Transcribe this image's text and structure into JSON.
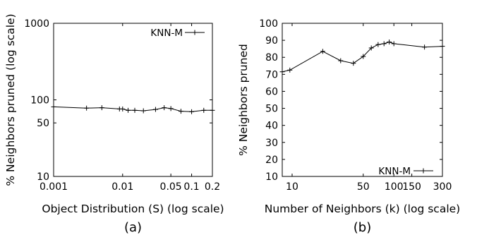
{
  "chart_data": [
    {
      "type": "line",
      "panel_label": "(a)",
      "xlabel": "Object Distribution (S) (log scale)",
      "ylabel": "% Neighbors pruned (log scale)",
      "x_scale": "log",
      "y_scale": "log",
      "xlim": [
        0.001,
        0.2
      ],
      "ylim": [
        10,
        1000
      ],
      "x_ticks": [
        {
          "value": 0.001,
          "label": "0.001"
        },
        {
          "value": 0.01,
          "label": "0.01"
        },
        {
          "value": 0.05,
          "label": "0.05"
        },
        {
          "value": 0.1,
          "label": "0.1"
        },
        {
          "value": 0.2,
          "label": "0.2"
        }
      ],
      "y_ticks": [
        {
          "value": 10,
          "label": "10"
        },
        {
          "value": 50,
          "label": "50"
        },
        {
          "value": 100,
          "label": "100"
        },
        {
          "value": 1000,
          "label": "1000"
        }
      ],
      "legend_position": "top-right",
      "grid": false,
      "series": [
        {
          "name": "KNN-M",
          "x": [
            0.001,
            0.003,
            0.005,
            0.009,
            0.01,
            0.012,
            0.015,
            0.02,
            0.03,
            0.04,
            0.05,
            0.07,
            0.1,
            0.15,
            0.2
          ],
          "y": [
            81,
            78,
            79,
            76,
            76,
            73,
            73,
            72,
            75,
            79,
            77,
            71,
            70,
            73,
            73
          ]
        }
      ]
    },
    {
      "type": "line",
      "panel_label": "(b)",
      "xlabel": "Number of Neighbors (k) (log scale)",
      "ylabel": "% Neighbors pruned",
      "x_scale": "log",
      "y_scale": "linear",
      "xlim": [
        8,
        300
      ],
      "ylim": [
        10,
        100
      ],
      "x_ticks": [
        {
          "value": 10,
          "label": "10"
        },
        {
          "value": 50,
          "label": "50"
        },
        {
          "value": 100,
          "label": "100"
        },
        {
          "value": 150,
          "label": "150"
        },
        {
          "value": 300,
          "label": "300"
        }
      ],
      "y_ticks": [
        {
          "value": 10,
          "label": "10"
        },
        {
          "value": 20,
          "label": "20"
        },
        {
          "value": 30,
          "label": "30"
        },
        {
          "value": 40,
          "label": "40"
        },
        {
          "value": 50,
          "label": "50"
        },
        {
          "value": 60,
          "label": "60"
        },
        {
          "value": 70,
          "label": "70"
        },
        {
          "value": 80,
          "label": "80"
        },
        {
          "value": 90,
          "label": "90"
        },
        {
          "value": 100,
          "label": "100"
        }
      ],
      "legend_position": "bottom-right",
      "grid": false,
      "series": [
        {
          "name": "KNN-M",
          "x": [
            8,
            9.5,
            20,
            30,
            40,
            50,
            60,
            70,
            80,
            90,
            100,
            200,
            300
          ],
          "y": [
            71.5,
            72.5,
            83.5,
            78,
            76.5,
            80.5,
            85.5,
            87.5,
            88,
            89,
            88,
            86,
            86.5
          ]
        }
      ]
    }
  ]
}
